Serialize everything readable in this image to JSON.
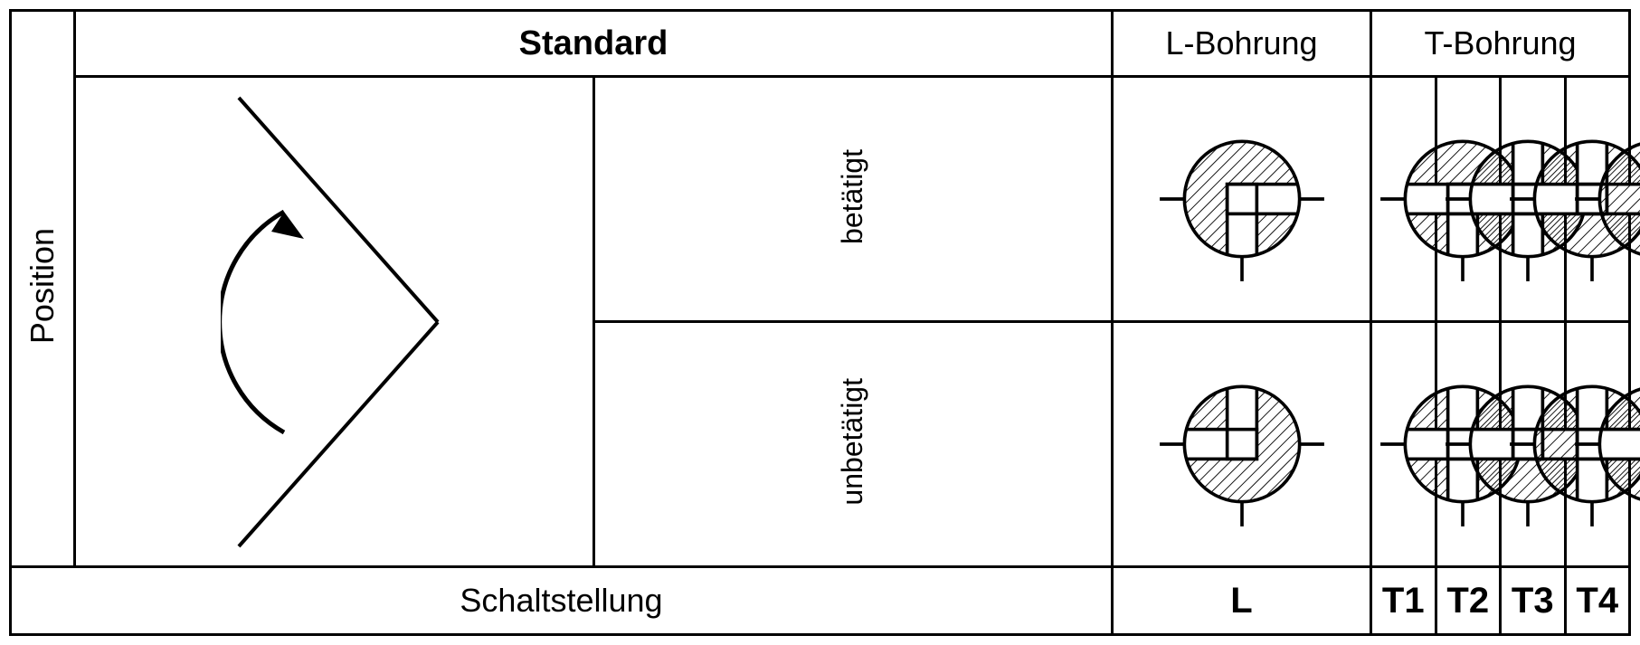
{
  "labels": {
    "standard": "Standard",
    "l_bore": "L-Bohrung",
    "t_bore": "T-Bohrung",
    "position": "Position",
    "betaetigt": "betätigt",
    "unbetaetigt": "unbetätigt",
    "schaltstellung": "Schaltstellung"
  },
  "columns": [
    "L",
    "T1",
    "T2",
    "T3",
    "T4"
  ],
  "style": {
    "stroke": "#000000",
    "stroke_width": 4,
    "circle_radius": 70,
    "bore_width": 36,
    "hatch_spacing": 10,
    "hatch_angle": 45,
    "port_length": 30,
    "svg_size": 220
  },
  "symbols": {
    "betaetigt": {
      "L": {
        "ports": [
          "left",
          "right",
          "bottom"
        ],
        "bore": [
          "right",
          "bottom"
        ]
      },
      "T1": {
        "ports": [
          "left",
          "right",
          "bottom"
        ],
        "bore": [
          "left",
          "right",
          "bottom"
        ]
      },
      "T2": {
        "ports": [
          "left",
          "right",
          "bottom"
        ],
        "bore": [
          "left",
          "top",
          "bottom"
        ]
      },
      "T3": {
        "ports": [
          "left",
          "right",
          "bottom"
        ],
        "bore": [
          "left",
          "right",
          "top"
        ]
      },
      "T4": {
        "ports": [
          "left",
          "right",
          "bottom"
        ],
        "bore": [
          "right",
          "top",
          "bottom"
        ]
      }
    },
    "unbetaetigt": {
      "L": {
        "ports": [
          "left",
          "right",
          "bottom"
        ],
        "bore": [
          "left",
          "top"
        ]
      },
      "T1": {
        "ports": [
          "left",
          "right",
          "bottom"
        ],
        "bore": [
          "left",
          "top",
          "bottom"
        ]
      },
      "T2": {
        "ports": [
          "left",
          "right",
          "bottom"
        ],
        "bore": [
          "left",
          "right",
          "top"
        ]
      },
      "T3": {
        "ports": [
          "left",
          "right",
          "bottom"
        ],
        "bore": [
          "right",
          "top",
          "bottom"
        ]
      },
      "T4": {
        "ports": [
          "left",
          "right",
          "bottom"
        ],
        "bore": [
          "left",
          "right",
          "bottom"
        ]
      }
    }
  }
}
